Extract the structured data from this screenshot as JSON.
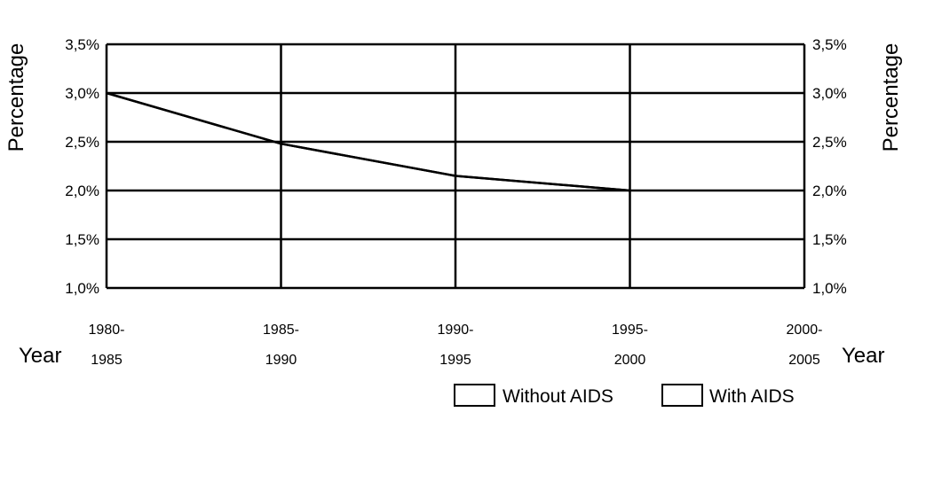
{
  "chart_data": {
    "type": "line",
    "ylabel_left": "Percentage",
    "ylabel_right": "Percentage",
    "xlabel_left": "Year",
    "xlabel_right": "Year",
    "categories": [
      {
        "top": "1980-",
        "bottom": "1985"
      },
      {
        "top": "1985-",
        "bottom": "1990"
      },
      {
        "top": "1990-",
        "bottom": "1995"
      },
      {
        "top": "1995-",
        "bottom": "2000"
      },
      {
        "top": "2000-",
        "bottom": "2005"
      }
    ],
    "y_ticks": [
      "3,5%",
      "3,0%",
      "2,5%",
      "2,0%",
      "1,5%",
      "1,0%"
    ],
    "y_tick_values": [
      3.5,
      3.0,
      2.5,
      2.0,
      1.5,
      1.0
    ],
    "ylim": [
      1.0,
      3.5
    ],
    "grid": true,
    "series": [
      {
        "name": "Without AIDS",
        "values": [
          3.0,
          2.48,
          2.15,
          2.0,
          null
        ]
      },
      {
        "name": "With AIDS",
        "values": [
          3.0,
          2.48,
          2.15,
          2.0,
          null
        ]
      }
    ],
    "legend_position": "bottom-right",
    "line_color": "#000000"
  }
}
